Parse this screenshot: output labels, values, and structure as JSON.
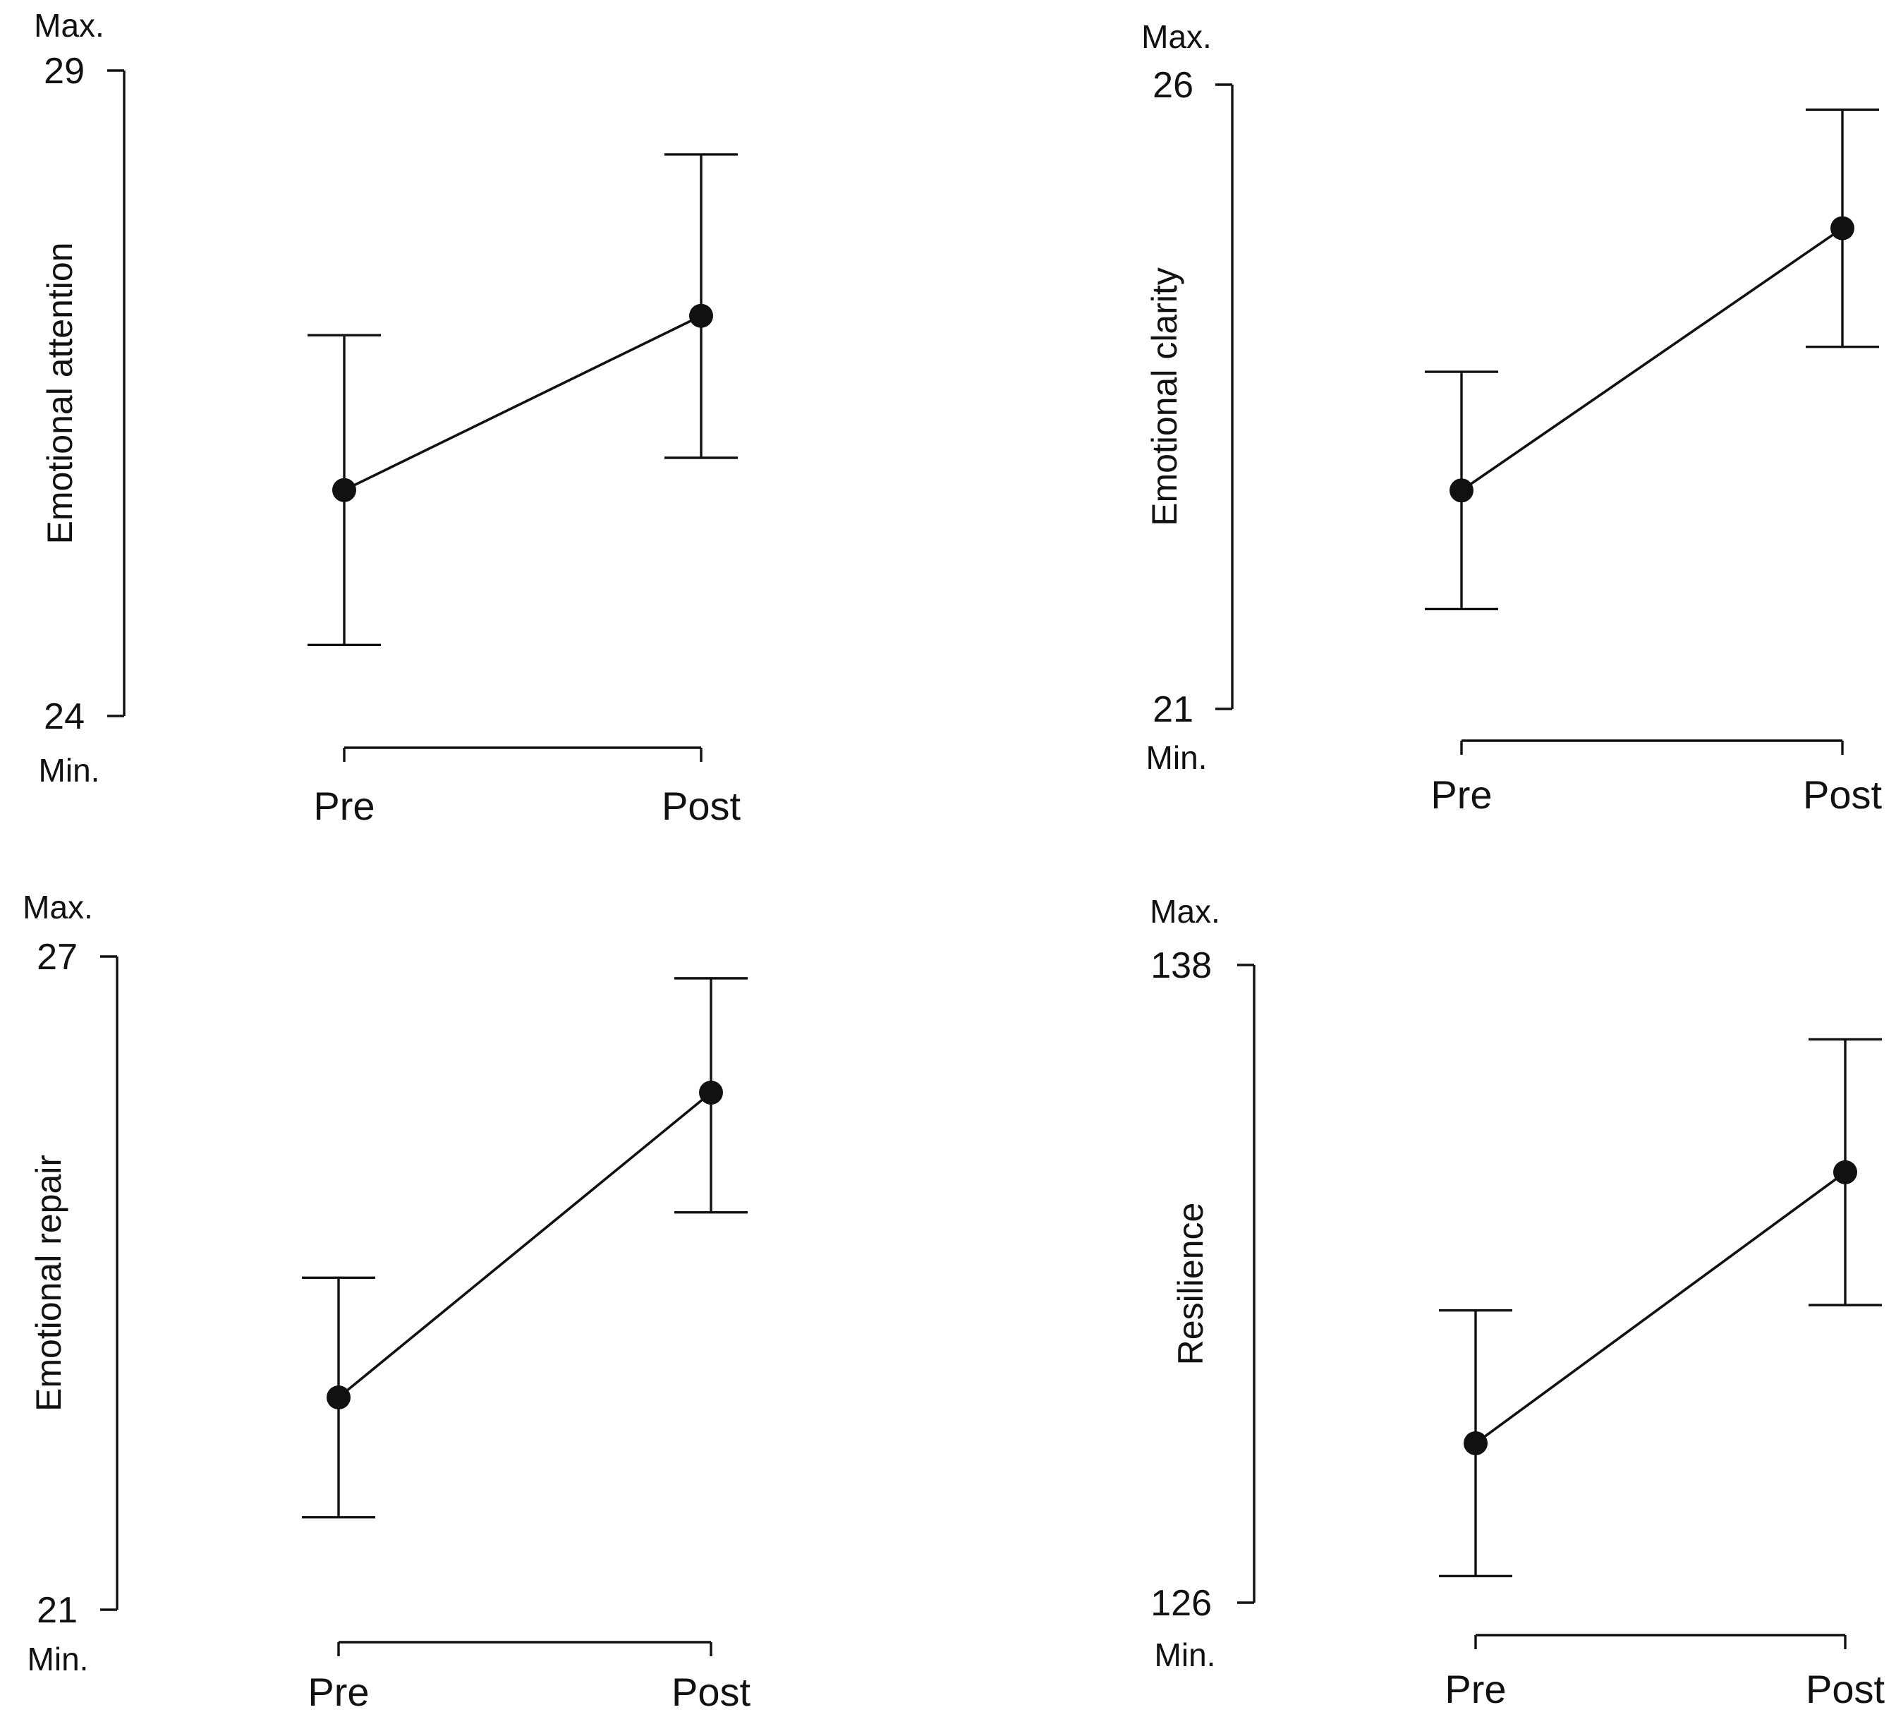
{
  "chart_data": [
    {
      "type": "line",
      "title": "",
      "xlabel": "",
      "ylabel": "Emotional attention",
      "categories": [
        "Pre",
        "Post"
      ],
      "series": [
        {
          "name": "Emotional attention",
          "values": [
            25.75,
            27.1
          ],
          "err_low": [
            24.55,
            26.0
          ],
          "err_high": [
            26.95,
            28.35
          ]
        }
      ],
      "ylim": [
        24,
        29
      ],
      "y_ticks": [
        "24",
        "29"
      ],
      "max_label": "Max.",
      "min_label": "Min.",
      "grid": false,
      "color": "#111111"
    },
    {
      "type": "line",
      "title": "",
      "xlabel": "",
      "ylabel": "Emotional clarity",
      "categories": [
        "Pre",
        "Post"
      ],
      "series": [
        {
          "name": "Emotional clarity",
          "values": [
            22.75,
            24.85
          ],
          "err_low": [
            21.8,
            23.9
          ],
          "err_high": [
            23.7,
            25.8
          ]
        }
      ],
      "ylim": [
        21,
        26
      ],
      "y_ticks": [
        "21",
        "26"
      ],
      "max_label": "Max.",
      "min_label": "Min.",
      "grid": false,
      "color": "#111111"
    },
    {
      "type": "line",
      "title": "",
      "xlabel": "",
      "ylabel": "Emotional repair",
      "categories": [
        "Pre",
        "Post"
      ],
      "series": [
        {
          "name": "Emotional repair",
          "values": [
            22.95,
            25.75
          ],
          "err_low": [
            21.85,
            24.65
          ],
          "err_high": [
            24.05,
            26.8
          ]
        }
      ],
      "ylim": [
        21,
        27
      ],
      "y_ticks": [
        "21",
        "27"
      ],
      "max_label": "Max.",
      "min_label": "Min.",
      "grid": false,
      "color": "#111111"
    },
    {
      "type": "line",
      "title": "",
      "xlabel": "",
      "ylabel": "Resilience",
      "categories": [
        "Pre",
        "Post"
      ],
      "series": [
        {
          "name": "Resilience",
          "values": [
            129.0,
            134.1
          ],
          "err_low": [
            126.5,
            131.6
          ],
          "err_high": [
            131.5,
            136.6
          ]
        }
      ],
      "ylim": [
        126,
        138
      ],
      "y_ticks": [
        "126",
        "138"
      ],
      "max_label": "Max.",
      "min_label": "Min.",
      "grid": false,
      "color": "#111111"
    }
  ]
}
